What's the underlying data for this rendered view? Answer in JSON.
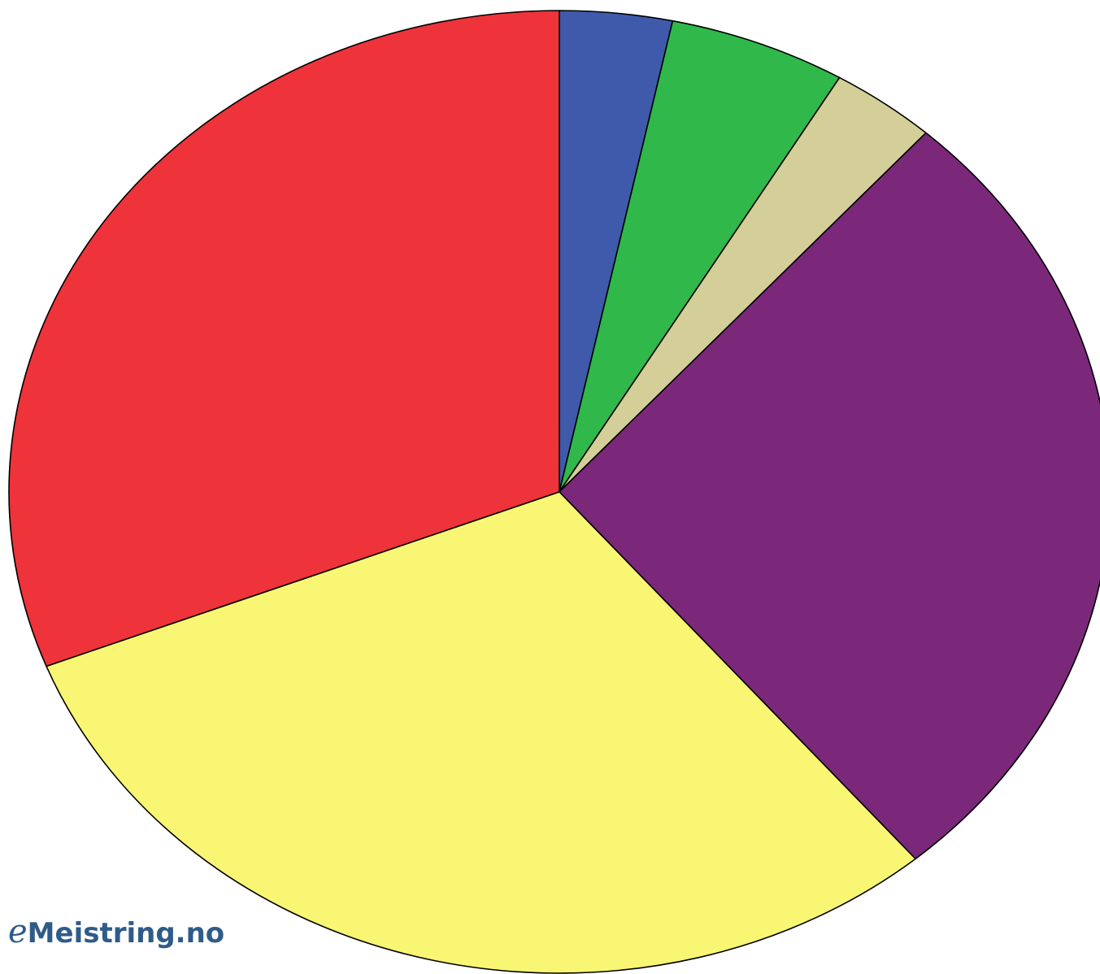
{
  "chart_data": {
    "type": "pie",
    "start_angle_deg": 0,
    "direction": "clockwise",
    "slices": [
      {
        "value": 3.3,
        "color": "#3f5aab"
      },
      {
        "value": 5.2,
        "color": "#30b84a"
      },
      {
        "value": 3.1,
        "color": "#d4cf98"
      },
      {
        "value": 27.2,
        "color": "#7b287b"
      },
      {
        "value": 30.3,
        "color": "#f8f673"
      },
      {
        "value": 30.9,
        "color": "#ee333a"
      }
    ],
    "stroke_color": "#000000"
  },
  "watermark": {
    "prefix": "e",
    "text": "Meistring.no",
    "color": "#2f5b8a"
  }
}
